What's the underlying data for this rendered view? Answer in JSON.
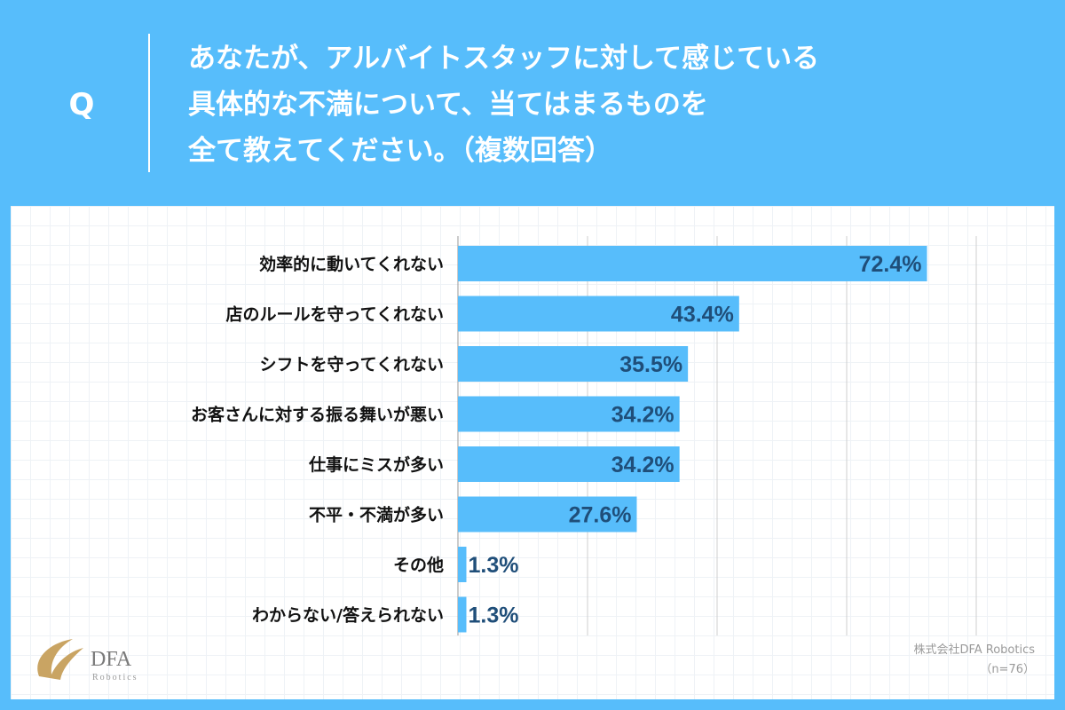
{
  "header": {
    "q_mark": "Q",
    "question_lines": [
      "あなたが、アルバイトスタッフに対して感じている",
      "具体的な不満について、当てはまるものを",
      "全て教えてください。（複数回答）"
    ]
  },
  "chart_data": {
    "type": "bar",
    "orientation": "horizontal",
    "title": "あなたが、アルバイトスタッフに対して感じている具体的な不満について、当てはまるものを全て教えてください。（複数回答）",
    "categories": [
      "効率的に動いてくれない",
      "店のルールを守ってくれない",
      "シフトを守ってくれない",
      "お客さんに対する振る舞いが悪い",
      "仕事にミスが多い",
      "不平・不満が多い",
      "その他",
      "わからない/答えられない"
    ],
    "values": [
      72.4,
      43.4,
      35.5,
      34.2,
      34.2,
      27.6,
      1.3,
      1.3
    ],
    "value_labels": [
      "72.4%",
      "43.4%",
      "35.5%",
      "34.2%",
      "34.2%",
      "27.6%",
      "1.3%",
      "1.3%"
    ],
    "unit": "%",
    "xlim": [
      0,
      80
    ],
    "x_gridlines": [
      0,
      20,
      40,
      60,
      80
    ],
    "grid": true,
    "xlabel": "",
    "ylabel": ""
  },
  "colors": {
    "background": "#57bdfb",
    "bar": "#57bdfb",
    "value_label": "#1f4e79",
    "category_label": "#111111",
    "gridline": "#cfcfcf"
  },
  "footer": {
    "company": "株式会社DFA Robotics",
    "sample": "（n=76）",
    "logo_text": "DFA",
    "logo_sub": "Robotics"
  }
}
